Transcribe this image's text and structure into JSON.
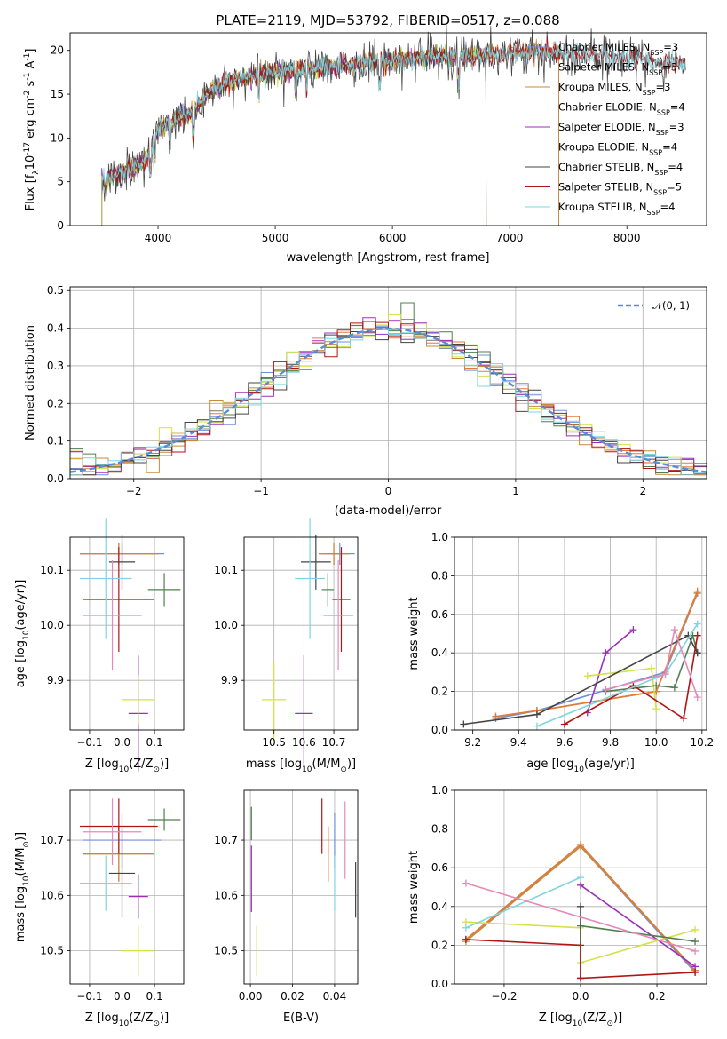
{
  "chart_data": [
    {
      "id": "spectrum",
      "type": "line",
      "title": "PLATE=2119, MJD=53792, FIBERID=0517, z=0.088",
      "xlabel": "wavelength [Angstrom, rest frame]",
      "ylabel_parts": [
        "Flux [f",
        "λ",
        "10",
        "-17",
        " erg cm",
        "-2",
        " s",
        "-1",
        " A",
        "-1",
        "]"
      ],
      "xlim": [
        3250,
        8680
      ],
      "ylim": [
        0,
        22
      ],
      "xticks": [
        4000,
        5000,
        6000,
        7000,
        8000
      ],
      "yticks": [
        0,
        5,
        10,
        15,
        20
      ],
      "grid": false,
      "legend_position": "right",
      "continuum": {
        "x": [
          3520,
          3600,
          3700,
          3800,
          3900,
          3950,
          4000,
          4100,
          4200,
          4300,
          4400,
          4500,
          4600,
          4800,
          5000,
          5200,
          5400,
          5600,
          5800,
          6000,
          6200,
          6400,
          6600,
          6800,
          7000,
          7200,
          7400
        ],
        "y": [
          5.0,
          5.6,
          6.2,
          6.8,
          7.5,
          9.5,
          11.0,
          11.8,
          12.4,
          13.0,
          14.8,
          15.8,
          16.3,
          17.0,
          17.5,
          17.8,
          18.0,
          18.3,
          18.7,
          18.8,
          19.1,
          19.4,
          19.3,
          19.5,
          19.6,
          19.8,
          19.8
        ]
      },
      "series": [
        {
          "name": "Chabrier MILES, N_SSP=3",
          "label_main": "Chabrier MILES, N",
          "label_sub": "SSP",
          "label_tail": "=3",
          "color": "#6f8fdc",
          "x_end": 7420
        },
        {
          "name": "Salpeter MILES, N_SSP=3",
          "label_main": "Salpeter MILES, N",
          "label_sub": "SSP",
          "label_tail": "=3",
          "color": "#e07b39",
          "x_end": 7420
        },
        {
          "name": "Kroupa MILES, N_SSP=3",
          "label_main": "Kroupa MILES, N",
          "label_sub": "SSP",
          "label_tail": "=3",
          "color": "#c88a3a",
          "x_end": 7420
        },
        {
          "name": "Chabrier ELODIE, N_SSP=4",
          "label_main": "Chabrier ELODIE, N",
          "label_sub": "SSP",
          "label_tail": "=4",
          "color": "#4f7f4f",
          "x_end": 6800
        },
        {
          "name": "Salpeter ELODIE, N_SSP=3",
          "label_main": "Salpeter ELODIE, N",
          "label_sub": "SSP",
          "label_tail": "=3",
          "color": "#9b30b8",
          "x_end": 6800
        },
        {
          "name": "Kroupa ELODIE, N_SSP=4",
          "label_main": "Kroupa ELODIE, N",
          "label_sub": "SSP",
          "label_tail": "=4",
          "color": "#d4e04a",
          "x_end": 6800
        },
        {
          "name": "Chabrier STELIB, N_SSP=4",
          "label_main": "Chabrier STELIB, N",
          "label_sub": "SSP",
          "label_tail": "=4",
          "color": "#444444",
          "x_end": 8500
        },
        {
          "name": "Salpeter STELIB, N_SSP=5",
          "label_main": "Salpeter STELIB, N",
          "label_sub": "SSP",
          "label_tail": "=5",
          "color": "#b01515",
          "x_end": 8500
        },
        {
          "name": "Kroupa STELIB, N_SSP=4",
          "label_main": "Kroupa STELIB, N",
          "label_sub": "SSP",
          "label_tail": "=4",
          "color": "#7fd4e0",
          "x_end": 8500
        }
      ]
    },
    {
      "id": "residuals",
      "type": "histogram",
      "xlabel": "(data-model)/error",
      "ylabel": "Normed distribution",
      "xlim": [
        -2.5,
        2.5
      ],
      "ylim": [
        0,
        0.51
      ],
      "xticks": [
        -2,
        -1,
        0,
        1,
        2
      ],
      "yticks": [
        0.0,
        0.1,
        0.2,
        0.3,
        0.4,
        0.5
      ],
      "xtick_labels": [
        "−2",
        "−1",
        "0",
        "1",
        "2"
      ],
      "ytick_labels": [
        "0.0",
        "0.1",
        "0.2",
        "0.3",
        "0.4",
        "0.5"
      ],
      "grid": true,
      "bin_width": 0.1,
      "bins_start": -2.5,
      "legend_position": "top-right",
      "legend": {
        "label": "𝒩(0, 1)",
        "color": "#5b8bd6"
      },
      "gaussian": {
        "mean": 0,
        "sigma": 1
      },
      "series_colors": [
        "#6f8fdc",
        "#e07b39",
        "#c88a3a",
        "#4f7f4f",
        "#9b30b8",
        "#d4e04a",
        "#444444",
        "#b01515",
        "#7fd4e0"
      ]
    },
    {
      "id": "z-age",
      "type": "errorbar",
      "xlabel_parts": [
        "Z [log",
        "10",
        "(Z/Z",
        "⊙",
        ")]"
      ],
      "ylabel_parts": [
        "age  [log",
        "10",
        "(age/yr)]"
      ],
      "xlim": [
        -0.16,
        0.19
      ],
      "ylim": [
        9.81,
        10.16
      ],
      "xticks": [
        -0.1,
        0.0,
        0.1
      ],
      "xtick_labels": [
        "−0.1",
        "0.0",
        "0.1"
      ],
      "yticks": [
        9.9,
        10.0,
        10.1
      ],
      "ytick_labels": [
        "9.9",
        "10.0",
        "10.1"
      ],
      "grid": true,
      "points": [
        {
          "x": 0.0,
          "y": 10.13,
          "ex": 0.13,
          "ey": 0.02,
          "color": "#6f8fdc"
        },
        {
          "x": -0.01,
          "y": 10.13,
          "ex": 0.12,
          "ey": 0.02,
          "color": "#e07b39"
        },
        {
          "x": -0.01,
          "y": 10.13,
          "ex": 0.12,
          "ey": 0.02,
          "color": "#c88a3a"
        },
        {
          "x": 0.13,
          "y": 10.065,
          "ex": 0.05,
          "ey": 0.03,
          "color": "#4f7f4f"
        },
        {
          "x": 0.05,
          "y": 9.84,
          "ex": 0.03,
          "ey": 0.105,
          "color": "#9b30b8"
        },
        {
          "x": 0.05,
          "y": 9.865,
          "ex": 0.05,
          "ey": 0.045,
          "color": "#d4e04a"
        },
        {
          "x": 0.0,
          "y": 10.115,
          "ex": 0.04,
          "ey": 0.05,
          "color": "#444444"
        },
        {
          "x": -0.01,
          "y": 10.047,
          "ex": 0.11,
          "ey": 0.095,
          "color": "#b01515"
        },
        {
          "x": -0.05,
          "y": 10.085,
          "ex": 0.08,
          "ey": 0.11,
          "color": "#7fd4e0"
        },
        {
          "x": -0.03,
          "y": 10.018,
          "ex": 0.09,
          "ey": 0.1,
          "color": "#e58ab8"
        }
      ]
    },
    {
      "id": "mass-age",
      "type": "errorbar",
      "xlabel_parts": [
        "mass [log",
        "10",
        "(M/M",
        "⊙",
        ")]"
      ],
      "xlim": [
        10.4,
        10.78
      ],
      "ylim": [
        9.81,
        10.16
      ],
      "xticks": [
        10.5,
        10.6,
        10.7
      ],
      "xtick_labels": [
        "10.5",
        "10.6",
        "10.7"
      ],
      "yticks": [
        9.9,
        10.0,
        10.1
      ],
      "ytick_labels": [
        "9.9",
        "10.0",
        "10.1"
      ],
      "grid": true,
      "points": [
        {
          "x": 10.72,
          "y": 10.13,
          "ex": 0.05,
          "ey": 0.02,
          "color": "#6f8fdc"
        },
        {
          "x": 10.7,
          "y": 10.13,
          "ex": 0.05,
          "ey": 0.02,
          "color": "#e07b39"
        },
        {
          "x": 10.7,
          "y": 10.13,
          "ex": 0.05,
          "ey": 0.02,
          "color": "#c88a3a"
        },
        {
          "x": 10.68,
          "y": 10.065,
          "ex": 0.02,
          "ey": 0.03,
          "color": "#4f7f4f"
        },
        {
          "x": 10.6,
          "y": 9.84,
          "ex": 0.03,
          "ey": 0.105,
          "color": "#9b30b8"
        },
        {
          "x": 10.5,
          "y": 9.865,
          "ex": 0.04,
          "ey": 0.07,
          "color": "#d4e04a"
        },
        {
          "x": 10.64,
          "y": 10.115,
          "ex": 0.05,
          "ey": 0.05,
          "color": "#444444"
        },
        {
          "x": 10.725,
          "y": 10.047,
          "ex": 0.03,
          "ey": 0.095,
          "color": "#b01515"
        },
        {
          "x": 10.62,
          "y": 10.085,
          "ex": 0.05,
          "ey": 0.11,
          "color": "#7fd4e0"
        },
        {
          "x": 10.715,
          "y": 10.018,
          "ex": 0.05,
          "ey": 0.1,
          "color": "#e58ab8"
        }
      ]
    },
    {
      "id": "age-weight",
      "type": "line",
      "xlabel_parts": [
        "age  [log",
        "10",
        "(age/yr)]"
      ],
      "ylabel": "mass weight",
      "xlim": [
        9.12,
        10.22
      ],
      "ylim": [
        0,
        1.0
      ],
      "xticks": [
        9.2,
        9.4,
        9.6,
        9.8,
        10.0,
        10.2
      ],
      "xtick_labels": [
        "9.2",
        "9.4",
        "9.6",
        "9.8",
        "10.0",
        "10.2"
      ],
      "yticks": [
        0.0,
        0.2,
        0.4,
        0.6,
        0.8,
        1.0
      ],
      "ytick_labels": [
        "0.0",
        "0.2",
        "0.4",
        "0.6",
        "0.8",
        "1.0"
      ],
      "grid": true,
      "series": [
        {
          "color": "#6f8fdc",
          "x": [
            9.3,
            9.48,
            10.04,
            10.18
          ],
          "y": [
            0.06,
            0.1,
            0.3,
            0.71
          ]
        },
        {
          "color": "#c88a3a",
          "x": [
            9.3,
            9.48,
            10.0,
            10.18
          ],
          "y": [
            0.07,
            0.1,
            0.2,
            0.71
          ]
        },
        {
          "color": "#e07b39",
          "x": [
            9.3,
            9.48,
            10.0,
            10.18
          ],
          "y": [
            0.07,
            0.1,
            0.2,
            0.72
          ]
        },
        {
          "color": "#9b30b8",
          "x": [
            9.7,
            9.78,
            9.9
          ],
          "y": [
            0.09,
            0.4,
            0.52
          ]
        },
        {
          "color": "#d4e04a",
          "x": [
            9.7,
            9.98,
            10.0
          ],
          "y": [
            0.28,
            0.32,
            0.11
          ]
        },
        {
          "color": "#4f7f4f",
          "x": [
            9.78,
            10.0,
            10.08,
            10.16,
            10.18
          ],
          "y": [
            0.2,
            0.23,
            0.22,
            0.49,
            0.4
          ]
        },
        {
          "color": "#444444",
          "x": [
            9.16,
            9.48,
            10.14,
            10.18
          ],
          "y": [
            0.03,
            0.08,
            0.49,
            0.4
          ]
        },
        {
          "color": "#b01515",
          "x": [
            9.6,
            9.9,
            10.12,
            10.18
          ],
          "y": [
            0.03,
            0.23,
            0.06,
            0.49
          ]
        },
        {
          "color": "#7fd4e0",
          "x": [
            9.48,
            10.04,
            10.18
          ],
          "y": [
            0.02,
            0.29,
            0.55
          ]
        },
        {
          "color": "#e58ab8",
          "x": [
            9.78,
            10.04,
            10.08,
            10.18
          ],
          "y": [
            0.21,
            0.29,
            0.52,
            0.17
          ]
        }
      ]
    },
    {
      "id": "z-mass",
      "type": "errorbar",
      "xlabel_parts": [
        "Z [log",
        "10",
        "(Z/Z",
        "⊙",
        ")]"
      ],
      "ylabel_parts": [
        "mass [log",
        "10",
        "(M/M",
        "⊙",
        ")]"
      ],
      "xlim": [
        -0.16,
        0.19
      ],
      "ylim": [
        10.44,
        10.79
      ],
      "xticks": [
        -0.1,
        0.0,
        0.1
      ],
      "xtick_labels": [
        "−0.1",
        "0.0",
        "0.1"
      ],
      "yticks": [
        10.5,
        10.6,
        10.7
      ],
      "ytick_labels": [
        "10.5",
        "10.6",
        "10.7"
      ],
      "grid": true,
      "points": [
        {
          "x": 0.0,
          "y": 10.7,
          "ex": 0.12,
          "ey": 0.05,
          "color": "#6f8fdc"
        },
        {
          "x": -0.01,
          "y": 10.675,
          "ex": 0.11,
          "ey": 0.05,
          "color": "#e07b39"
        },
        {
          "x": -0.01,
          "y": 10.675,
          "ex": 0.11,
          "ey": 0.05,
          "color": "#c88a3a"
        },
        {
          "x": 0.13,
          "y": 10.737,
          "ex": 0.05,
          "ey": 0.02,
          "color": "#4f7f4f"
        },
        {
          "x": 0.05,
          "y": 10.598,
          "ex": 0.03,
          "ey": 0.04,
          "color": "#9b30b8"
        },
        {
          "x": 0.05,
          "y": 10.5,
          "ex": 0.05,
          "ey": 0.045,
          "color": "#d4e04a"
        },
        {
          "x": 0.0,
          "y": 10.64,
          "ex": 0.04,
          "ey": 0.08,
          "color": "#444444"
        },
        {
          "x": -0.01,
          "y": 10.725,
          "ex": 0.12,
          "ey": 0.05,
          "color": "#b01515"
        },
        {
          "x": -0.05,
          "y": 10.622,
          "ex": 0.08,
          "ey": 0.05,
          "color": "#7fd4e0"
        },
        {
          "x": -0.03,
          "y": 10.715,
          "ex": 0.09,
          "ey": 0.06,
          "color": "#e58ab8"
        }
      ]
    },
    {
      "id": "ebv-mass",
      "type": "errorbar",
      "xlabel": "E(B-V)",
      "xlim": [
        -0.003,
        0.051
      ],
      "ylim": [
        10.44,
        10.79
      ],
      "xticks": [
        0.0,
        0.02,
        0.04
      ],
      "xtick_labels": [
        "0.00",
        "0.02",
        "0.04"
      ],
      "yticks": [
        10.5,
        10.6,
        10.7
      ],
      "ytick_labels": [
        "10.5",
        "10.6",
        "10.7"
      ],
      "grid": true,
      "points": [
        {
          "x": 0.04,
          "y": 10.7,
          "ex": 0,
          "ey": 0.05,
          "color": "#6f8fdc"
        },
        {
          "x": 0.037,
          "y": 10.675,
          "ex": 0,
          "ey": 0.05,
          "color": "#e07b39"
        },
        {
          "x": 0.0005,
          "y": 10.73,
          "ex": 0,
          "ey": 0.03,
          "color": "#4f7f4f"
        },
        {
          "x": 0.0005,
          "y": 10.63,
          "ex": 0,
          "ey": 0.06,
          "color": "#9b30b8"
        },
        {
          "x": 0.003,
          "y": 10.5,
          "ex": 0,
          "ey": 0.045,
          "color": "#d4e04a"
        },
        {
          "x": 0.05,
          "y": 10.61,
          "ex": 0,
          "ey": 0.05,
          "color": "#444444"
        },
        {
          "x": 0.034,
          "y": 10.725,
          "ex": 0,
          "ey": 0.05,
          "color": "#b01515"
        },
        {
          "x": 0.04,
          "y": 10.622,
          "ex": 0,
          "ey": 0.05,
          "color": "#7fd4e0"
        },
        {
          "x": 0.045,
          "y": 10.7,
          "ex": 0,
          "ey": 0.07,
          "color": "#e58ab8"
        }
      ]
    },
    {
      "id": "z-weight",
      "type": "line",
      "xlabel_parts": [
        "Z [log",
        "10",
        "(Z/Z",
        "⊙",
        ")]"
      ],
      "ylabel": "mass weight",
      "xlim": [
        -0.33,
        0.33
      ],
      "ylim": [
        0,
        1.0
      ],
      "xticks": [
        -0.2,
        0.0,
        0.2
      ],
      "xtick_labels": [
        "−0.2",
        "0.0",
        "0.2"
      ],
      "yticks": [
        0.0,
        0.2,
        0.4,
        0.6,
        0.8,
        1.0
      ],
      "ytick_labels": [
        "0.0",
        "0.2",
        "0.4",
        "0.6",
        "0.8",
        "1.0"
      ],
      "grid": true,
      "series": [
        {
          "color": "#6f8fdc",
          "x": [
            -0.3,
            0.0,
            0.3
          ],
          "y": [
            0.23,
            0.71,
            0.06
          ]
        },
        {
          "color": "#c88a3a",
          "x": [
            -0.3,
            0.0,
            0.3
          ],
          "y": [
            0.22,
            0.71,
            0.07
          ]
        },
        {
          "color": "#e07b39",
          "x": [
            -0.3,
            0.0,
            0.3
          ],
          "y": [
            0.23,
            0.72,
            0.07
          ]
        },
        {
          "color": "#9b30b8",
          "x": [
            0.0,
            0.3
          ],
          "y": [
            0.51,
            0.09
          ]
        },
        {
          "color": "#d4e04a",
          "x": [
            -0.3,
            0.0,
            0.0,
            0.3
          ],
          "y": [
            0.32,
            0.29,
            0.11,
            0.28
          ]
        },
        {
          "color": "#4f7f4f",
          "x": [
            0.0,
            0.3
          ],
          "y": [
            0.3,
            0.22
          ]
        },
        {
          "color": "#444444",
          "x": [
            0.0,
            0.0
          ],
          "y": [
            0.4,
            0.03
          ]
        },
        {
          "color": "#b01515",
          "x": [
            -0.3,
            0.0,
            0.0,
            0.3
          ],
          "y": [
            0.23,
            0.2,
            0.03,
            0.06
          ]
        },
        {
          "color": "#7fd4e0",
          "x": [
            -0.3,
            0.0
          ],
          "y": [
            0.29,
            0.55
          ]
        },
        {
          "color": "#e58ab8",
          "x": [
            -0.3,
            0.3
          ],
          "y": [
            0.52,
            0.17
          ]
        }
      ]
    }
  ]
}
